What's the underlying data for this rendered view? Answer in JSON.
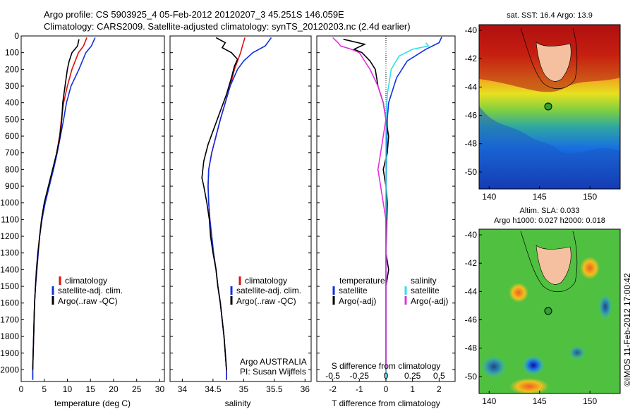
{
  "header": {
    "line1": "Argo profile: CS 5903925_4 05-Feb-2012 20120207_3 45.251S 146.059E",
    "line2": "Climatology: CARS2009. Satellite-adjusted climatology: synTS_20120203.nc (2.4d earlier)"
  },
  "colors": {
    "climatology": "#e01010",
    "satellite": "#1030e0",
    "argo": "#000000",
    "satellite_s": "#30e0e8",
    "argo_s": "#e030e0"
  },
  "chart_data": [
    {
      "type": "line",
      "id": "temperature",
      "xlabel": "temperature (deg C)",
      "ylabel": "",
      "xlim": [
        0,
        31
      ],
      "ylim": [
        2070,
        0
      ],
      "xticks": [
        "0",
        "5",
        "10",
        "15",
        "20",
        "25",
        "30"
      ],
      "yticks": [
        "0",
        "100",
        "200",
        "300",
        "400",
        "500",
        "600",
        "700",
        "800",
        "900",
        "1000",
        "1100",
        "1200",
        "1300",
        "1400",
        "1500",
        "1600",
        "1700",
        "1800",
        "1900",
        "2000"
      ],
      "legend": {
        "position": "lower-center",
        "entries": [
          "climatology",
          "satellite-adj. clim.",
          "Argo(..raw -QC)"
        ]
      },
      "series": [
        {
          "name": "climatology",
          "color": "#e01010",
          "points": [
            [
              14.2,
              10
            ],
            [
              13.5,
              60
            ],
            [
              12.4,
              100
            ],
            [
              11.0,
              200
            ],
            [
              10.0,
              300
            ],
            [
              9.2,
              400
            ],
            [
              8.7,
              500
            ],
            [
              8.3,
              600
            ],
            [
              7.7,
              700
            ],
            [
              6.9,
              800
            ],
            [
              6.0,
              900
            ],
            [
              5.1,
              1000
            ],
            [
              4.5,
              1100
            ],
            [
              4.0,
              1200
            ],
            [
              3.7,
              1300
            ],
            [
              3.4,
              1400
            ],
            [
              3.1,
              1500
            ],
            [
              2.9,
              1600
            ],
            [
              2.8,
              1700
            ],
            [
              2.7,
              1800
            ],
            [
              2.6,
              1900
            ],
            [
              2.5,
              2000
            ],
            [
              2.5,
              2060
            ]
          ]
        },
        {
          "name": "satellite-adj. clim.",
          "color": "#1030e0",
          "points": [
            [
              16.0,
              10
            ],
            [
              15.2,
              60
            ],
            [
              14.0,
              100
            ],
            [
              12.5,
              200
            ],
            [
              10.8,
              300
            ],
            [
              9.8,
              400
            ],
            [
              9.2,
              500
            ],
            [
              8.5,
              600
            ],
            [
              7.8,
              700
            ],
            [
              7.0,
              800
            ],
            [
              6.1,
              900
            ],
            [
              5.2,
              1000
            ],
            [
              4.5,
              1100
            ],
            [
              4.0,
              1200
            ],
            [
              3.7,
              1300
            ],
            [
              3.4,
              1400
            ],
            [
              3.1,
              1500
            ],
            [
              2.9,
              1600
            ],
            [
              2.8,
              1700
            ],
            [
              2.7,
              1800
            ],
            [
              2.6,
              1900
            ],
            [
              2.5,
              2000
            ],
            [
              2.5,
              2060
            ]
          ]
        },
        {
          "name": "Argo(..raw -QC)",
          "color": "#000000",
          "points": [
            [
              12.5,
              20
            ],
            [
              12.2,
              60
            ],
            [
              11.0,
              100
            ],
            [
              10.4,
              150
            ],
            [
              10.0,
              200
            ],
            [
              9.5,
              300
            ],
            [
              9.0,
              400
            ],
            [
              8.8,
              500
            ],
            [
              8.4,
              600
            ],
            [
              7.7,
              700
            ],
            [
              6.8,
              800
            ],
            [
              5.9,
              900
            ],
            [
              5.0,
              1000
            ],
            [
              4.4,
              1100
            ],
            [
              4.0,
              1200
            ],
            [
              3.6,
              1300
            ],
            [
              3.3,
              1400
            ],
            [
              3.1,
              1500
            ],
            [
              2.9,
              1600
            ],
            [
              2.8,
              1700
            ],
            [
              2.7,
              1800
            ],
            [
              2.6,
              1900
            ],
            [
              2.5,
              2000
            ]
          ]
        }
      ]
    },
    {
      "type": "line",
      "id": "salinity",
      "xlabel": "salinity",
      "ylabel": "",
      "xlim": [
        33.8,
        36.1
      ],
      "ylim": [
        2070,
        0
      ],
      "xticks": [
        "34",
        "34.5",
        "35",
        "35.5",
        "36"
      ],
      "legend": {
        "position": "lower-center",
        "entries": [
          "climatology",
          "satellite-adj. clim.",
          "Argo(..raw -QC)"
        ]
      },
      "annotation": [
        "Argo AUSTRALIA",
        "PI: Susan Wijffels"
      ],
      "series": [
        {
          "name": "climatology",
          "color": "#e01010",
          "points": [
            [
              35.02,
              10
            ],
            [
              34.98,
              60
            ],
            [
              34.95,
              100
            ],
            [
              34.9,
              150
            ],
            [
              34.85,
              200
            ],
            [
              34.78,
              300
            ],
            [
              34.7,
              400
            ],
            [
              34.62,
              500
            ],
            [
              34.55,
              600
            ],
            [
              34.48,
              700
            ],
            [
              34.43,
              800
            ],
            [
              34.42,
              900
            ],
            [
              34.43,
              1000
            ],
            [
              34.45,
              1100
            ],
            [
              34.48,
              1200
            ],
            [
              34.51,
              1300
            ],
            [
              34.55,
              1400
            ],
            [
              34.58,
              1500
            ],
            [
              34.62,
              1600
            ],
            [
              34.65,
              1700
            ],
            [
              34.68,
              1800
            ],
            [
              34.7,
              1900
            ],
            [
              34.72,
              2000
            ],
            [
              34.72,
              2060
            ]
          ]
        },
        {
          "name": "satellite-adj. clim.",
          "color": "#1030e0",
          "points": [
            [
              35.45,
              10
            ],
            [
              35.35,
              60
            ],
            [
              35.15,
              100
            ],
            [
              35.0,
              150
            ],
            [
              34.9,
              200
            ],
            [
              34.78,
              300
            ],
            [
              34.7,
              400
            ],
            [
              34.62,
              500
            ],
            [
              34.55,
              600
            ],
            [
              34.48,
              700
            ],
            [
              34.43,
              800
            ],
            [
              34.42,
              900
            ],
            [
              34.43,
              1000
            ],
            [
              34.45,
              1100
            ],
            [
              34.48,
              1200
            ],
            [
              34.51,
              1300
            ],
            [
              34.55,
              1400
            ],
            [
              34.58,
              1500
            ],
            [
              34.62,
              1600
            ],
            [
              34.65,
              1700
            ],
            [
              34.68,
              1800
            ],
            [
              34.7,
              1900
            ],
            [
              34.72,
              2000
            ],
            [
              34.72,
              2060
            ]
          ]
        },
        {
          "name": "Argo(..raw -QC)",
          "color": "#000000",
          "points": [
            [
              34.55,
              10
            ],
            [
              34.7,
              40
            ],
            [
              34.65,
              70
            ],
            [
              34.8,
              100
            ],
            [
              34.9,
              140
            ],
            [
              34.85,
              180
            ],
            [
              34.8,
              250
            ],
            [
              34.72,
              350
            ],
            [
              34.62,
              450
            ],
            [
              34.52,
              550
            ],
            [
              34.42,
              650
            ],
            [
              34.35,
              750
            ],
            [
              34.32,
              850
            ],
            [
              34.35,
              900
            ],
            [
              34.4,
              1000
            ],
            [
              34.44,
              1100
            ],
            [
              34.46,
              1200
            ],
            [
              34.5,
              1300
            ],
            [
              34.55,
              1400
            ],
            [
              34.58,
              1500
            ],
            [
              34.62,
              1600
            ],
            [
              34.65,
              1700
            ],
            [
              34.68,
              1800
            ],
            [
              34.7,
              1900
            ],
            [
              34.72,
              2000
            ]
          ]
        }
      ]
    },
    {
      "type": "line",
      "id": "difference",
      "xlabel": "T difference from climatology",
      "xlabel_top": "S difference from climatology",
      "xlim": [
        -2.6,
        2.6
      ],
      "ylim": [
        2070,
        0
      ],
      "xticks": [
        "-2",
        "-1",
        "0",
        "1",
        "2"
      ],
      "xticks_s": [
        "-0.5",
        "-0.25",
        "0",
        "0.25",
        "0.5"
      ],
      "legend": {
        "position": "lower-center",
        "headers": [
          "temperature",
          "salinity"
        ],
        "entries": [
          "satellite",
          "Argo(-adj)",
          "satellite",
          "Argo(-adj)"
        ]
      },
      "series": [
        {
          "name": "satellite",
          "group": "temperature",
          "color": "#1030e0",
          "points": [
            [
              2.1,
              5
            ],
            [
              2.0,
              40
            ],
            [
              1.5,
              80
            ],
            [
              0.8,
              150
            ],
            [
              0.4,
              250
            ],
            [
              0.1,
              400
            ],
            [
              0.05,
              500
            ],
            [
              0.02,
              700
            ],
            [
              0,
              1000
            ],
            [
              0,
              1500
            ],
            [
              0,
              2060
            ]
          ]
        },
        {
          "name": "Argo(-adj)",
          "group": "temperature",
          "color": "#000000",
          "points": [
            [
              -1.6,
              20
            ],
            [
              -0.8,
              50
            ],
            [
              -1.2,
              80
            ],
            [
              -0.9,
              100
            ],
            [
              -0.6,
              150
            ],
            [
              -0.4,
              200
            ],
            [
              -0.3,
              300
            ],
            [
              -0.1,
              400
            ],
            [
              0,
              500
            ],
            [
              0.1,
              600
            ],
            [
              0.05,
              700
            ],
            [
              -0.1,
              800
            ],
            [
              0,
              900
            ],
            [
              0.05,
              1000
            ],
            [
              0,
              1300
            ],
            [
              0.1,
              1400
            ],
            [
              0,
              1500
            ],
            [
              0,
              2000
            ]
          ]
        },
        {
          "name": "satellite",
          "group": "salinity",
          "color": "#30e0e8",
          "points": [
            [
              1.5,
              40
            ],
            [
              1.6,
              60
            ],
            [
              1.0,
              80
            ],
            [
              0.5,
              120
            ],
            [
              0.2,
              200
            ],
            [
              0.05,
              350
            ],
            [
              0,
              500
            ],
            [
              0,
              2060
            ]
          ]
        },
        {
          "name": "Argo(-adj)",
          "group": "salinity",
          "color": "#e030e0",
          "points": [
            [
              -2.0,
              10
            ],
            [
              -1.8,
              40
            ],
            [
              -1.7,
              60
            ],
            [
              -1.3,
              80
            ],
            [
              -1.0,
              100
            ],
            [
              -0.8,
              150
            ],
            [
              -0.6,
              200
            ],
            [
              -0.3,
              300
            ],
            [
              -0.1,
              400
            ],
            [
              0,
              500
            ],
            [
              -0.1,
              600
            ],
            [
              -0.2,
              700
            ],
            [
              -0.3,
              800
            ],
            [
              -0.2,
              900
            ],
            [
              -0.1,
              1000
            ],
            [
              0,
              1100
            ],
            [
              0,
              1200
            ],
            [
              0,
              1400
            ],
            [
              0,
              1500
            ],
            [
              0,
              2000
            ]
          ]
        }
      ]
    },
    {
      "type": "heatmap",
      "id": "sst_map",
      "title": "sat. SST: 16.4  Argo: 13.9",
      "xticks": [
        "140",
        "145",
        "150"
      ],
      "yticks": [
        "-40",
        "-42",
        "-44",
        "-46",
        "-48",
        "-50"
      ],
      "xlim": [
        139,
        153
      ],
      "ylim": [
        -51.2,
        -39.6
      ],
      "profile_location": [
        146.06,
        -45.25
      ]
    },
    {
      "type": "heatmap",
      "id": "sla_map",
      "title": "Altim. SLA: 0.033",
      "subtitle": "Argo h1000: 0.027  h2000: 0.018",
      "xticks": [
        "140",
        "145",
        "150"
      ],
      "yticks": [
        "-40",
        "-42",
        "-44",
        "-46",
        "-48",
        "-50"
      ],
      "xlim": [
        139,
        153
      ],
      "ylim": [
        -51.2,
        -39.6
      ],
      "profile_location": [
        146.06,
        -45.25
      ]
    }
  ],
  "side_label": "©IMOS 11-Feb-2012 17:00:42"
}
